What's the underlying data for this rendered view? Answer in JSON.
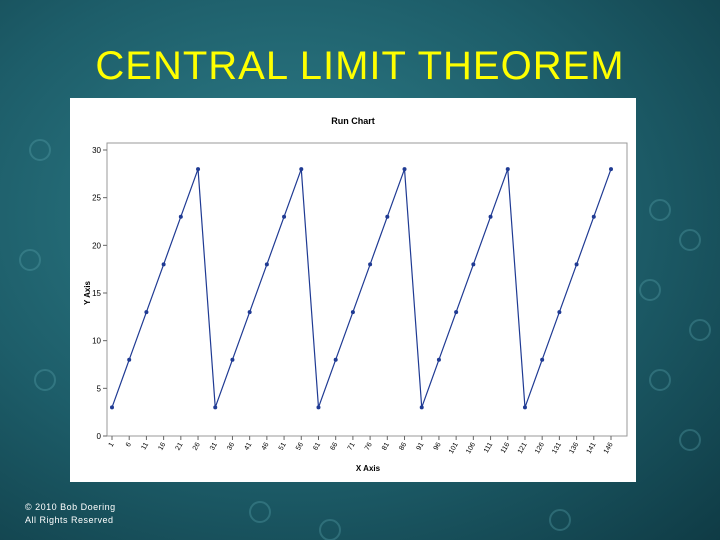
{
  "title": "CENTRAL LIMIT THEOREM",
  "footer": [
    "© 2010  Bob Doering",
    "All Rights Reserved"
  ],
  "chart_data": {
    "type": "line",
    "title": "Run Chart",
    "x_label": "X Axis",
    "y_label": "Y Axis",
    "x": [
      1,
      6,
      11,
      16,
      21,
      26,
      31,
      36,
      41,
      46,
      51,
      56,
      61,
      66,
      71,
      76,
      81,
      86,
      91,
      96,
      101,
      106,
      111,
      116,
      121,
      126,
      131,
      136,
      141,
      146
    ],
    "values": [
      3,
      8,
      13,
      18,
      23,
      28,
      3,
      8,
      13,
      18,
      23,
      28,
      3,
      8,
      13,
      18,
      23,
      28,
      3,
      8,
      13,
      18,
      23,
      28,
      3,
      8,
      13,
      18,
      23,
      28
    ],
    "color": "#1f3a93",
    "xlim": [
      1,
      146
    ],
    "xticks": [
      1,
      6,
      11,
      16,
      21,
      26,
      31,
      36,
      41,
      46,
      51,
      56,
      61,
      66,
      71,
      76,
      81,
      86,
      91,
      96,
      101,
      106,
      111,
      116,
      121,
      126,
      131,
      136,
      141,
      146
    ],
    "ylim": [
      0,
      30
    ],
    "yticks": [
      0,
      5,
      10,
      15,
      20,
      25,
      30
    ],
    "grid": false
  }
}
